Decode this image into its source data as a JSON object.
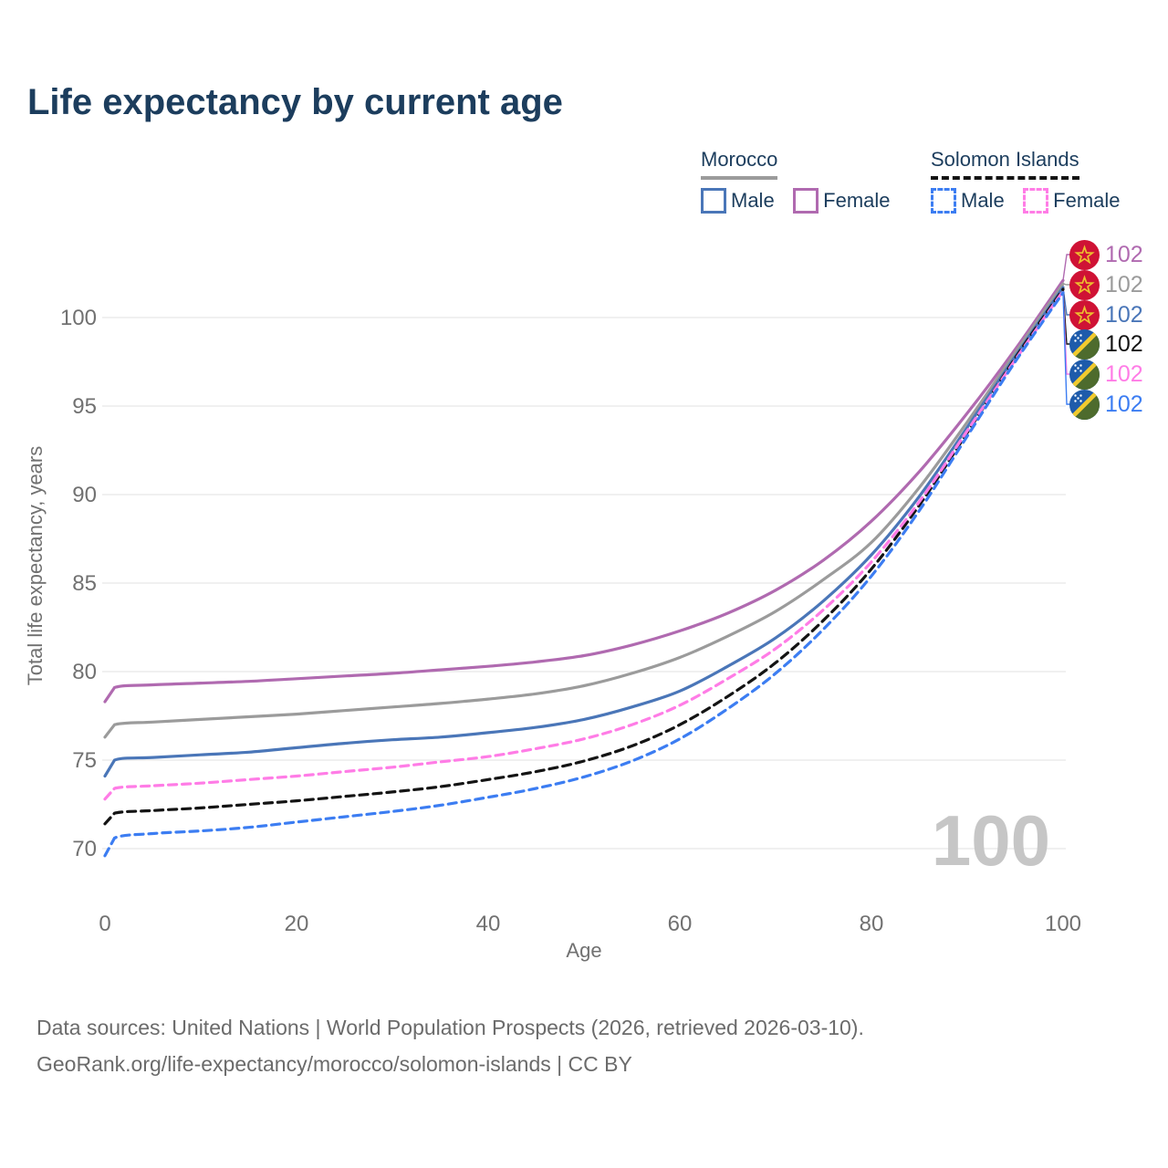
{
  "page": {
    "title": "Life expectancy by current age"
  },
  "legend": {
    "groups": [
      {
        "id": "morocco",
        "title": "Morocco",
        "line_style": "solid",
        "rule_color": "#9b9b9b",
        "items": [
          {
            "id": "morocco-male",
            "label": "Male",
            "color": "#4a76b8",
            "dashed": false
          },
          {
            "id": "morocco-female",
            "label": "Female",
            "color": "#b06ab0",
            "dashed": false
          }
        ]
      },
      {
        "id": "solomon-islands",
        "title": "Solomon Islands",
        "line_style": "dashed",
        "rule_color": "#141414",
        "items": [
          {
            "id": "solomon-male",
            "label": "Male",
            "color": "#3c7df2",
            "dashed": true
          },
          {
            "id": "solomon-female",
            "label": "Female",
            "color": "#ff7ce6",
            "dashed": true
          }
        ]
      }
    ]
  },
  "chart_data": {
    "type": "line",
    "title": "Life expectancy by current age",
    "xlabel": "Age",
    "ylabel": "Total life expectancy, years",
    "x_ticks": [
      0,
      20,
      40,
      60,
      80,
      100
    ],
    "y_ticks": [
      70,
      75,
      80,
      85,
      90,
      95,
      100
    ],
    "xlim": [
      0,
      100
    ],
    "ylim": [
      69,
      103
    ],
    "grid": true,
    "legend_position": "top-right",
    "x": [
      0,
      1,
      5,
      10,
      15,
      20,
      25,
      30,
      35,
      40,
      45,
      50,
      55,
      60,
      65,
      70,
      75,
      80,
      85,
      90,
      95,
      100
    ],
    "series": [
      {
        "id": "morocco-female",
        "name": "Morocco Female",
        "color": "#b06ab0",
        "dashed": false,
        "values": [
          78.3,
          79.1,
          79.25,
          79.35,
          79.45,
          79.6,
          79.75,
          79.9,
          80.1,
          80.3,
          80.55,
          80.9,
          81.5,
          82.3,
          83.3,
          84.6,
          86.3,
          88.5,
          91.3,
          94.6,
          98.2,
          102.1
        ]
      },
      {
        "id": "morocco-total",
        "name": "Morocco All",
        "color": "#9b9b9b",
        "dashed": false,
        "values": [
          76.3,
          77.0,
          77.15,
          77.3,
          77.45,
          77.6,
          77.8,
          78.0,
          78.2,
          78.45,
          78.75,
          79.2,
          79.9,
          80.8,
          82.0,
          83.4,
          85.2,
          87.3,
          90.4,
          94.1,
          98.0,
          101.9
        ]
      },
      {
        "id": "morocco-male",
        "name": "Morocco Male",
        "color": "#4a76b8",
        "dashed": false,
        "values": [
          74.1,
          75.0,
          75.15,
          75.3,
          75.45,
          75.7,
          75.95,
          76.15,
          76.3,
          76.55,
          76.85,
          77.3,
          78.0,
          78.9,
          80.3,
          81.9,
          84.0,
          86.6,
          89.9,
          93.8,
          97.8,
          101.7
        ]
      },
      {
        "id": "solomon-total",
        "name": "Solomon Islands All",
        "color": "#141414",
        "dashed": true,
        "values": [
          71.4,
          72.0,
          72.15,
          72.3,
          72.5,
          72.7,
          72.95,
          73.2,
          73.5,
          73.9,
          74.35,
          74.95,
          75.8,
          77.0,
          78.6,
          80.5,
          82.9,
          85.8,
          89.4,
          93.5,
          97.7,
          101.6
        ]
      },
      {
        "id": "solomon-female",
        "name": "Solomon Islands Female",
        "color": "#ff7ce6",
        "dashed": true,
        "values": [
          72.8,
          73.4,
          73.55,
          73.7,
          73.9,
          74.1,
          74.35,
          74.6,
          74.9,
          75.2,
          75.65,
          76.2,
          77.0,
          78.1,
          79.6,
          81.3,
          83.5,
          86.2,
          89.6,
          93.6,
          97.6,
          101.5
        ]
      },
      {
        "id": "solomon-male",
        "name": "Solomon Islands Male",
        "color": "#3c7df2",
        "dashed": true,
        "values": [
          69.6,
          70.6,
          70.85,
          71.0,
          71.2,
          71.5,
          71.8,
          72.1,
          72.45,
          72.9,
          73.4,
          74.05,
          74.95,
          76.2,
          77.9,
          79.9,
          82.4,
          85.4,
          89.1,
          93.3,
          97.5,
          101.4
        ]
      }
    ]
  },
  "end_labels": [
    {
      "series": "morocco-female",
      "flag": "morocco",
      "value": "102",
      "color": "#b06ab0"
    },
    {
      "series": "morocco-total",
      "flag": "morocco",
      "value": "102",
      "color": "#9b9b9b"
    },
    {
      "series": "morocco-male",
      "flag": "morocco",
      "value": "102",
      "color": "#4a76b8"
    },
    {
      "series": "solomon-total",
      "flag": "solomon-islands",
      "value": "102",
      "color": "#141414"
    },
    {
      "series": "solomon-female",
      "flag": "solomon-islands",
      "value": "102",
      "color": "#ff7ce6"
    },
    {
      "series": "solomon-male",
      "flag": "solomon-islands",
      "value": "102",
      "color": "#3c7df2"
    }
  ],
  "watermark": {
    "value": "100"
  },
  "flag_colors": {
    "morocco": {
      "field": "#cf1235",
      "star": "#ecbf2e"
    },
    "solomon_islands": {
      "blue": "#1e5bab",
      "green": "#4d6b2d",
      "yellow": "#f2cb2e",
      "stars": "#ffffff"
    }
  },
  "footer": {
    "line1": "Data sources: United Nations | World Population Prospects (2026, retrieved 2026-03-10).",
    "line2": "GeoRank.org/life-expectancy/morocco/solomon-islands | CC BY"
  }
}
